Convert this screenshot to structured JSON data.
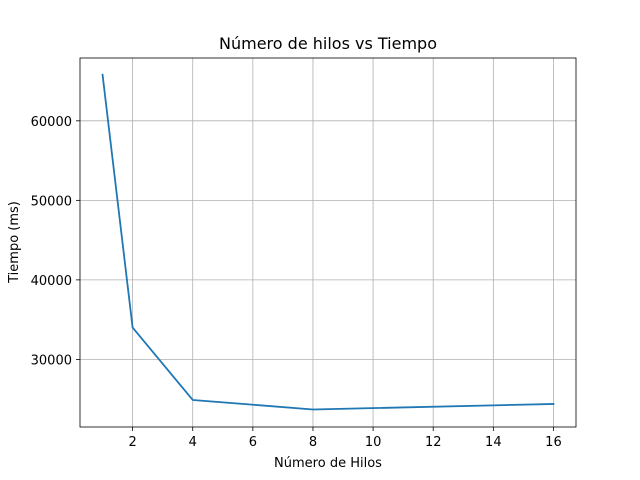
{
  "chart_data": {
    "type": "line",
    "title": "Número de hilos vs Tiempo",
    "xlabel": "Número de Hilos",
    "ylabel": "Tiempo (ms)",
    "x": [
      1,
      2,
      4,
      8,
      16
    ],
    "series": [
      {
        "values": [
          65800,
          34000,
          24900,
          23700,
          24400
        ],
        "color": "#1f77b4"
      }
    ],
    "xlim": [
      0.25,
      16.75
    ],
    "ylim": [
      21500,
      67900
    ],
    "xticks": [
      2,
      4,
      6,
      8,
      10,
      12,
      14,
      16
    ],
    "yticks": [
      30000,
      40000,
      50000,
      60000
    ],
    "grid": true,
    "legend": false
  }
}
